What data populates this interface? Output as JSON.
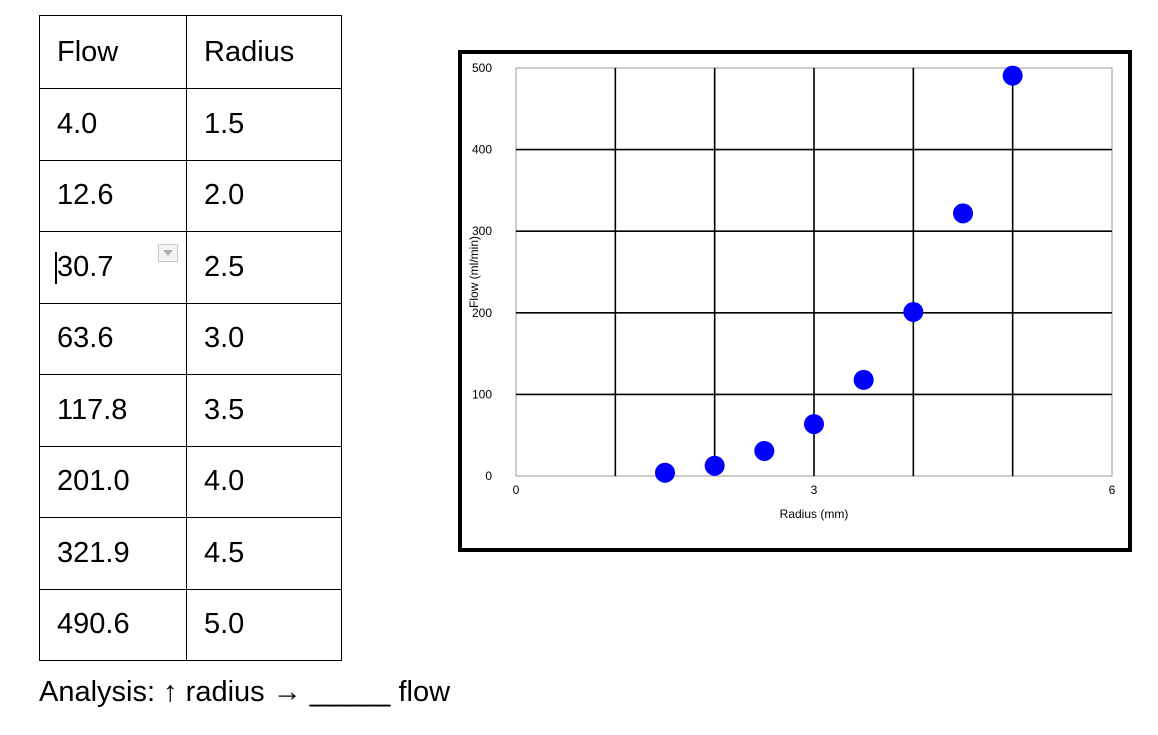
{
  "table": {
    "headers": [
      "Flow",
      "Radius"
    ],
    "rows": [
      [
        "4.0",
        "1.5"
      ],
      [
        "12.6",
        "2.0"
      ],
      [
        "30.7",
        "2.5"
      ],
      [
        "63.6",
        "3.0"
      ],
      [
        "117.8",
        "3.5"
      ],
      [
        "201.0",
        "4.0"
      ],
      [
        "321.9",
        "4.5"
      ],
      [
        "490.6",
        "5.0"
      ]
    ]
  },
  "chart_data": {
    "type": "scatter",
    "xlabel": "Radius (mm)",
    "ylabel": "Flow (ml/min)",
    "xlim": [
      0,
      6
    ],
    "ylim": [
      0,
      500
    ],
    "x_tick_labels": [
      "0",
      "3",
      "6"
    ],
    "y_tick_labels": [
      "0",
      "100",
      "200",
      "300",
      "400",
      "500"
    ],
    "grid": true,
    "marker_color": "#0000ff",
    "x": [
      1.5,
      2.0,
      2.5,
      3.0,
      3.5,
      4.0,
      4.5,
      5.0
    ],
    "y": [
      4.0,
      12.6,
      30.7,
      63.6,
      117.8,
      201.0,
      321.9,
      490.6
    ]
  },
  "analysis": {
    "text": "Analysis: ↑ radius → _____ flow"
  }
}
